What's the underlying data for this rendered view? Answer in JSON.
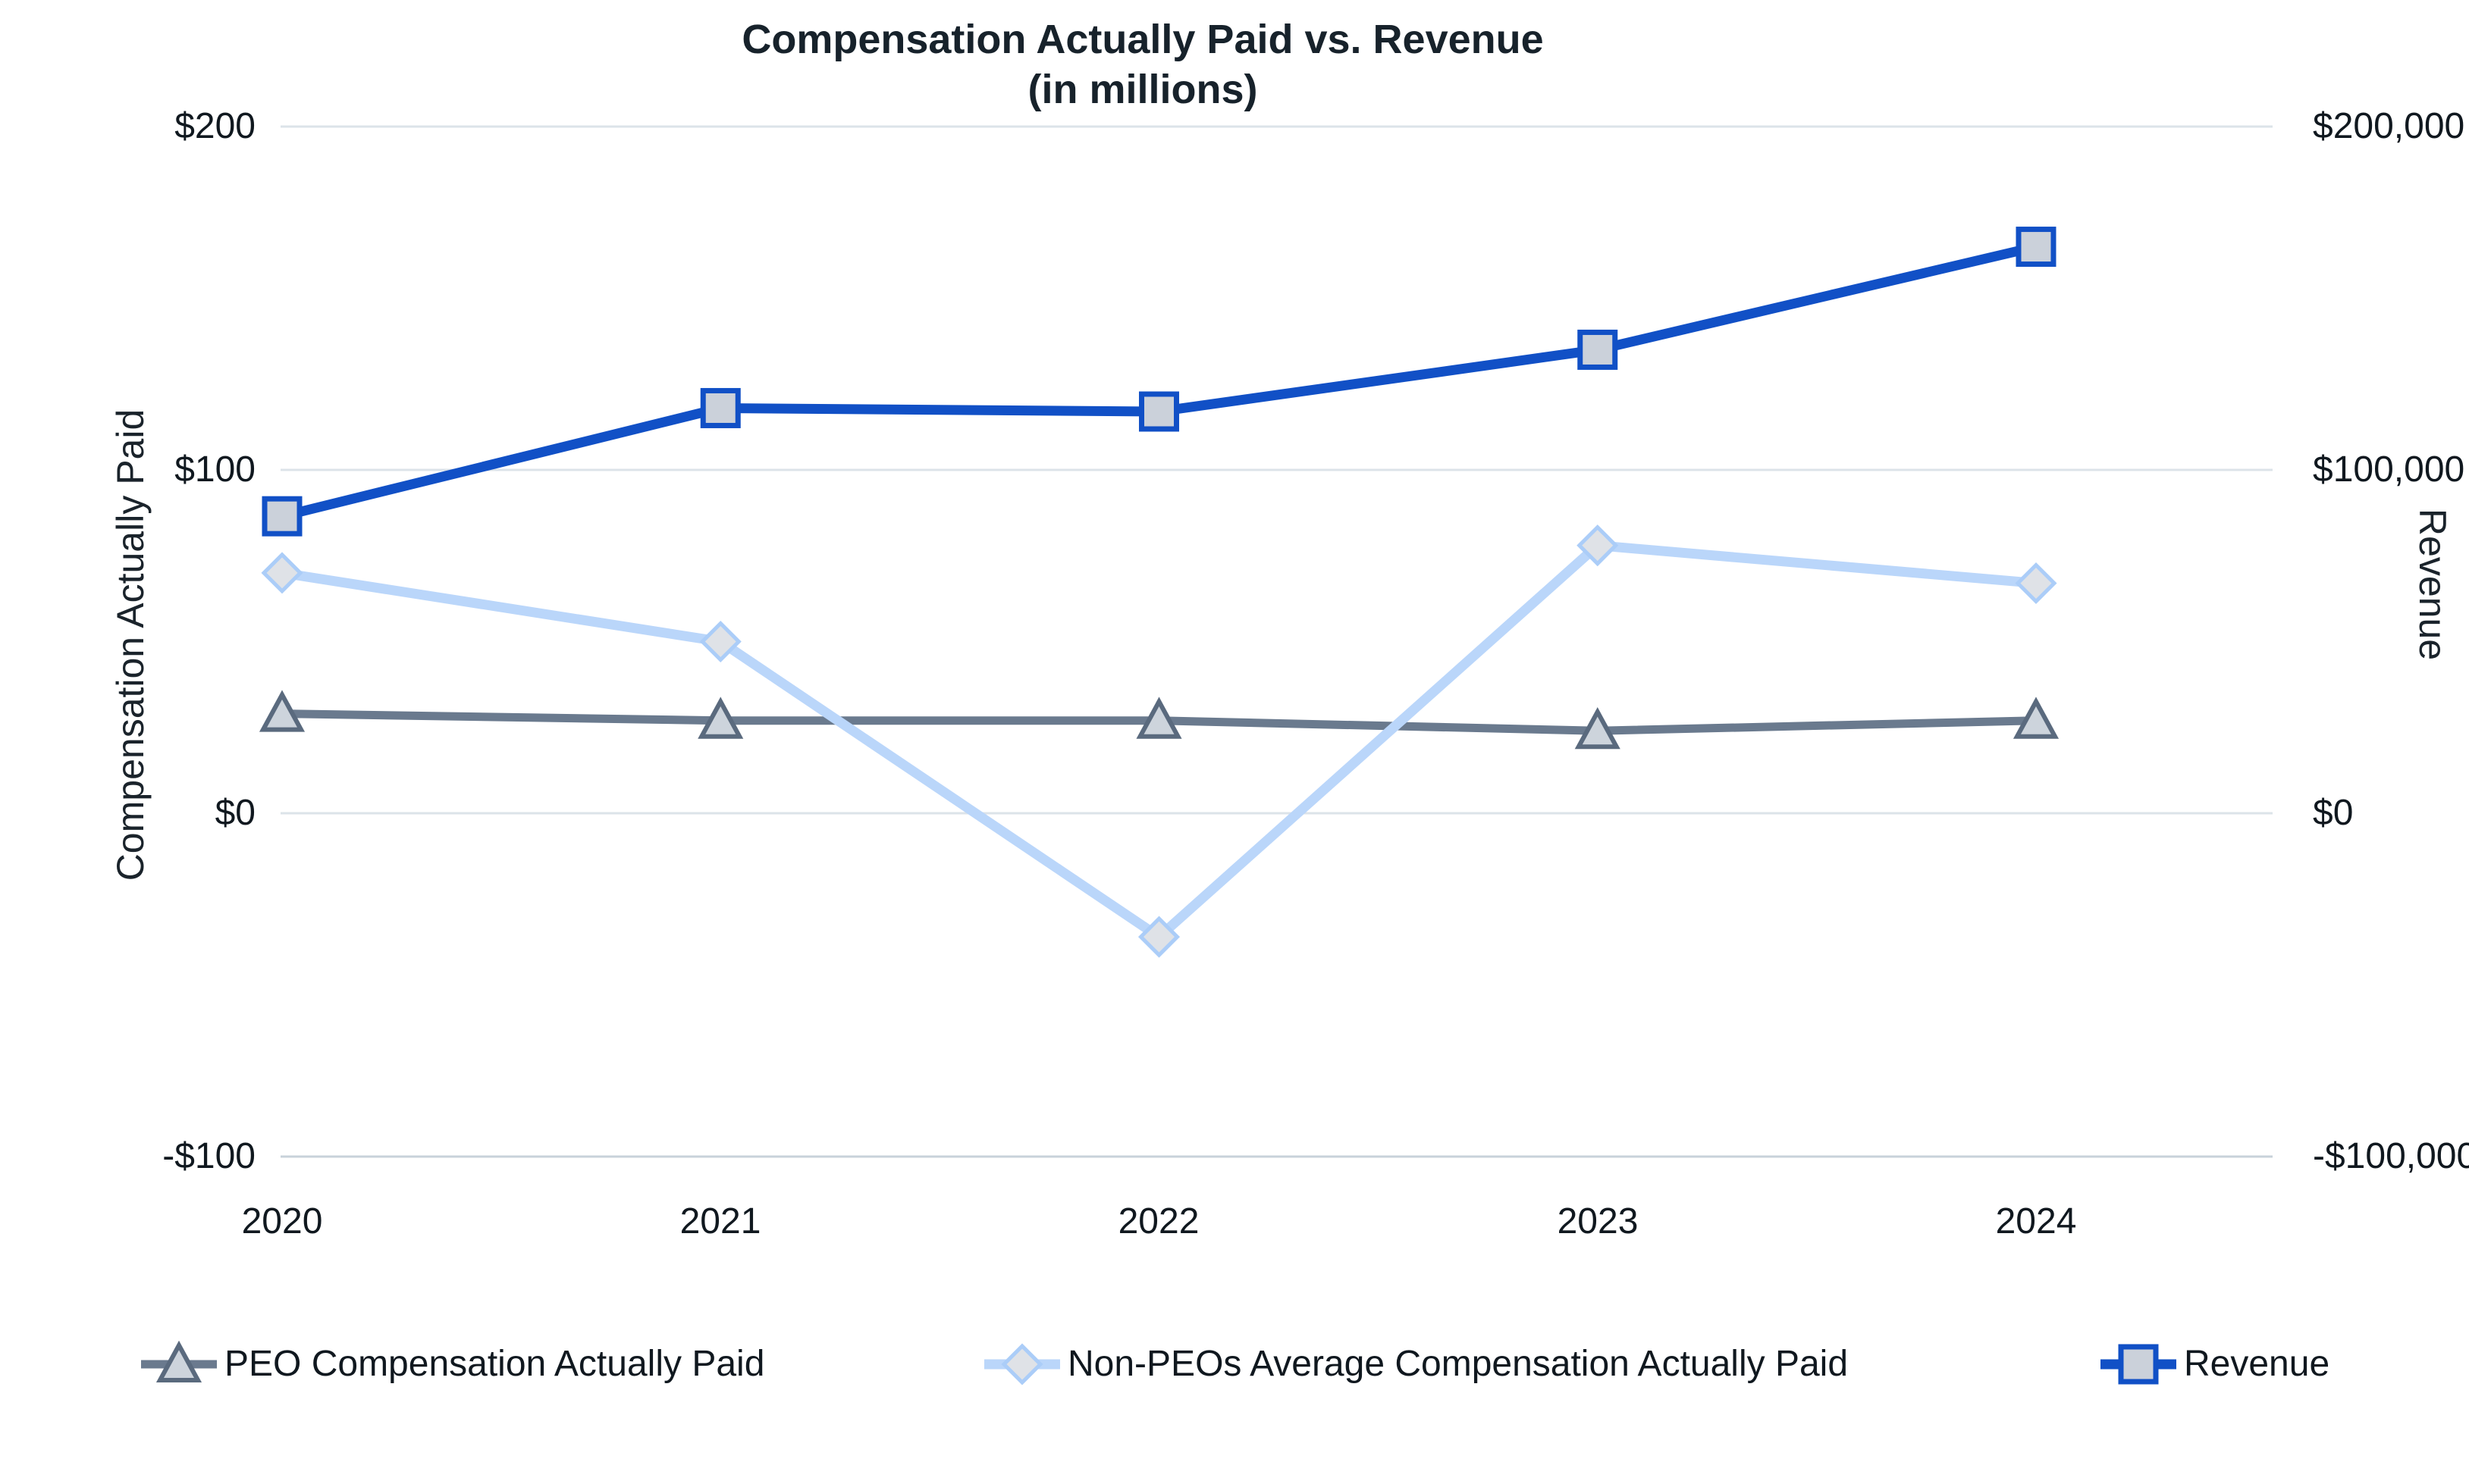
{
  "title": {
    "line1": "Compensation Actually Paid vs. Revenue",
    "line2": "(in millions)"
  },
  "axes": {
    "left": {
      "title": "Compensation Actually Paid",
      "ticks": [
        "$200",
        "$100",
        "$0",
        "-$100"
      ]
    },
    "right": {
      "title": "Revenue",
      "ticks": [
        "$200,000",
        "$100,000",
        "$0",
        "-$100,000"
      ]
    }
  },
  "x_axis": {
    "categories": [
      "2020",
      "2021",
      "2022",
      "2023",
      "2024"
    ]
  },
  "legend": {
    "items": [
      {
        "label": "PEO Compensation Actually Paid"
      },
      {
        "label": "Non-PEOs Average Compensation Actually Paid"
      },
      {
        "label": "Revenue"
      }
    ]
  },
  "chart_data": {
    "type": "line",
    "title": "Compensation Actually Paid vs. Revenue (in millions)",
    "categories": [
      "2020",
      "2021",
      "2022",
      "2023",
      "2024"
    ],
    "left_axis_label": "Compensation Actually Paid",
    "right_axis_label": "Revenue",
    "left_ylim": [
      -100,
      200
    ],
    "right_ylim": [
      -100000,
      200000
    ],
    "gridline_values": [
      200,
      100,
      0,
      -100
    ],
    "grid": "horizontal-only",
    "legend_position": "bottom",
    "series": [
      {
        "id": "peo-cap",
        "name": "PEO Compensation Actually Paid",
        "axis": "left",
        "marker": "triangle",
        "color": "#6A7A8E",
        "marker_fill": "#CDD4DC",
        "marker_stroke": "#5A6A7E",
        "line_width": 11,
        "values": [
          29,
          27,
          27,
          24,
          27
        ]
      },
      {
        "id": "non-peo-cap",
        "name": "Non-PEOs Average Compensation Actually Paid",
        "axis": "left",
        "marker": "diamond",
        "color": "#BAD6FA",
        "marker_fill": "#DFE2E7",
        "marker_stroke": "#ABCDF8",
        "line_width": 13,
        "values": [
          70,
          50,
          -36,
          78,
          67
        ]
      },
      {
        "id": "revenue",
        "name": "Revenue",
        "axis": "right",
        "marker": "square",
        "color": "#1150C6",
        "marker_fill": "#CBD1DA",
        "marker_stroke": "#1150C6",
        "line_width": 13,
        "values": [
          86500,
          118000,
          117000,
          135000,
          165000
        ]
      }
    ]
  },
  "colors": {
    "grid": "#DCE3E9",
    "axis_line": "#C8D2DA",
    "text": "#1A232B"
  }
}
